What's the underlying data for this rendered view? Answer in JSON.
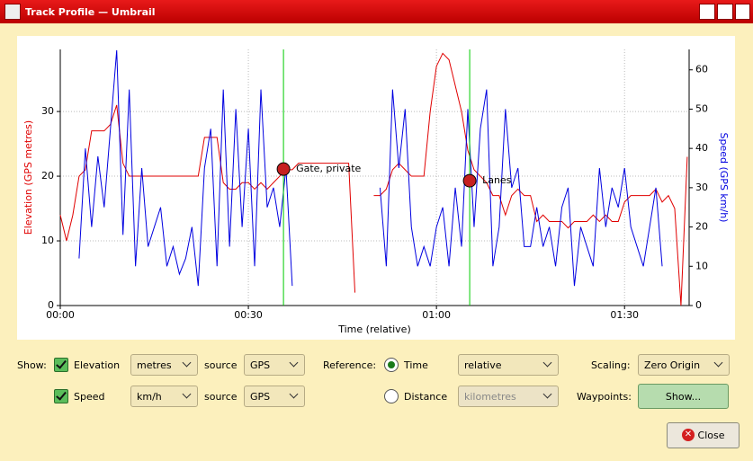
{
  "window": {
    "title": "Track Profile — Umbrail"
  },
  "chart_data": {
    "type": "line",
    "xlabel": "Time (relative)",
    "ylabel": "Elevation (GPS metres)",
    "y2label": "Speed (GPS km/h)",
    "x": [
      0,
      1,
      2,
      3,
      4,
      5,
      6,
      7,
      8,
      9,
      10,
      11,
      12,
      13,
      14,
      15,
      16,
      17,
      18,
      19,
      20,
      21,
      22,
      23,
      24,
      25,
      26,
      27,
      28,
      29,
      30,
      31,
      32,
      33,
      34,
      35,
      36,
      37,
      38,
      39,
      40,
      41,
      42,
      43,
      44,
      45,
      46,
      47,
      48,
      49,
      50,
      51,
      52,
      53,
      54,
      55,
      56,
      57,
      58,
      59,
      60,
      61,
      62,
      63,
      64,
      65,
      66,
      67,
      68,
      69,
      70,
      71,
      72,
      73,
      74,
      75,
      76,
      77,
      78,
      79,
      80,
      81,
      82,
      83,
      84,
      85,
      86,
      87,
      88,
      89,
      90,
      91,
      92,
      93,
      94,
      95,
      96,
      97,
      98,
      99,
      100
    ],
    "series": [
      {
        "name": "Elevation",
        "color": "#e00000",
        "values": [
          14,
          10,
          14,
          20,
          21,
          27,
          27,
          27,
          28,
          31,
          22,
          20,
          20,
          20,
          20,
          20,
          20,
          20,
          20,
          20,
          20,
          20,
          20,
          26,
          26,
          26,
          19,
          18,
          18,
          19,
          19,
          18,
          19,
          18,
          19,
          20,
          21,
          21,
          22,
          22,
          22,
          22,
          22,
          22,
          22,
          22,
          22,
          2,
          null,
          null,
          17,
          17,
          18,
          21,
          22,
          21,
          20,
          20,
          20,
          30,
          37,
          39,
          38,
          34,
          30,
          24,
          21,
          20,
          19,
          17,
          17,
          14,
          17,
          18,
          17,
          17,
          13,
          14,
          13,
          13,
          13,
          12,
          13,
          13,
          13,
          14,
          13,
          14,
          13,
          13,
          16,
          17,
          17,
          17,
          17,
          18,
          16,
          17,
          15,
          0,
          23
        ]
      },
      {
        "name": "Speed",
        "color": "#0000e0",
        "axis": "y2",
        "values": [
          null,
          null,
          null,
          12,
          40,
          20,
          38,
          25,
          45,
          65,
          18,
          55,
          10,
          35,
          15,
          20,
          25,
          10,
          15,
          8,
          12,
          20,
          5,
          35,
          45,
          10,
          55,
          15,
          50,
          20,
          45,
          10,
          55,
          25,
          30,
          20,
          35,
          5,
          null,
          null,
          null,
          null,
          null,
          null,
          null,
          null,
          null,
          null,
          null,
          null,
          null,
          30,
          10,
          55,
          35,
          50,
          20,
          10,
          15,
          10,
          20,
          25,
          10,
          30,
          15,
          50,
          20,
          45,
          55,
          10,
          20,
          50,
          30,
          35,
          15,
          15,
          25,
          15,
          20,
          10,
          25,
          30,
          5,
          20,
          15,
          10,
          35,
          20,
          30,
          25,
          35,
          20,
          15,
          10,
          20,
          30,
          10,
          null,
          null,
          null,
          null
        ]
      }
    ],
    "xlim": [
      0,
      100.3
    ],
    "ylim": [
      0,
      39.6
    ],
    "y2lim": [
      0,
      65.2
    ],
    "xticks": [
      {
        "value": 0,
        "label": "00:00"
      },
      {
        "value": 30,
        "label": "00:30"
      },
      {
        "value": 60,
        "label": "01:00"
      },
      {
        "value": 90,
        "label": "01:30"
      }
    ],
    "yticks": [
      0,
      10,
      20,
      30
    ],
    "y2ticks": [
      0,
      10,
      20,
      30,
      40,
      50,
      60
    ],
    "grid": true,
    "waypoints": [
      {
        "name": "Gate, private",
        "x": 35.6,
        "y": 21.1,
        "color": "#00cc00"
      },
      {
        "name": "Lanes",
        "x": 65.3,
        "y": 19.3,
        "color": "#00cc00"
      }
    ]
  },
  "controls": {
    "show_label": "Show:",
    "elevation": {
      "label": "Elevation",
      "checked": true,
      "unit": "metres",
      "source_label": "source",
      "source": "GPS"
    },
    "speed": {
      "label": "Speed",
      "checked": true,
      "unit": "km/h",
      "source_label": "source",
      "source": "GPS"
    },
    "reference_label": "Reference:",
    "time": {
      "label": "Time",
      "selected": true,
      "mode": "relative"
    },
    "distance": {
      "label": "Distance",
      "selected": false,
      "unit": "kilometres"
    },
    "scaling_label": "Scaling:",
    "scaling": "Zero Origin",
    "waypoints_label": "Waypoints:",
    "waypoints_button": "Show...",
    "close_button": "Close"
  }
}
